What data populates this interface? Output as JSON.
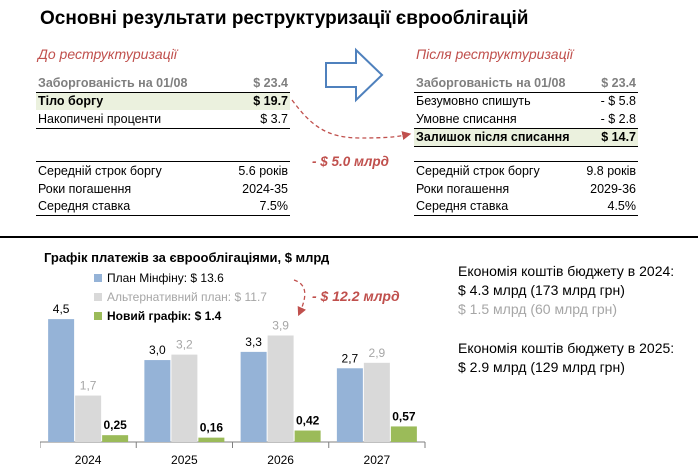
{
  "title": "Основні результати реструктуризації єврооблігацій",
  "before": {
    "heading": "До реструктуризації",
    "rows": [
      {
        "label": "Заборгованість на 01/08",
        "value": "$ 23.4"
      },
      {
        "label": "Тіло боргу",
        "value": "$ 19.7"
      },
      {
        "label": "Накопичені проценти",
        "value": "$ 3.7"
      }
    ],
    "stats": [
      {
        "label": "Середній строк боргу",
        "value": "5.6 років"
      },
      {
        "label": "Роки погашення",
        "value": "2024-35"
      },
      {
        "label": "Середня ставка",
        "value": "7.5%"
      }
    ]
  },
  "after": {
    "heading": "Після реструктуризації",
    "rows": [
      {
        "label": "Заборгованість на 01/08",
        "value": "$ 23.4"
      },
      {
        "label": "Безумовно спишуть",
        "value": "- $ 5.8"
      },
      {
        "label": "Умовне списання",
        "value": "- $ 2.8"
      },
      {
        "label": "Залишок після списання",
        "value": "$ 14.7"
      }
    ],
    "stats": [
      {
        "label": "Середній строк боргу",
        "value": "9.8 років"
      },
      {
        "label": "Роки погашення",
        "value": "2029-36"
      },
      {
        "label": "Середня ставка",
        "value": "4.5%"
      }
    ]
  },
  "cut_label": "- $ 5.0 млрд",
  "chart_cut_label": "- $ 12.2 млрд",
  "economy": {
    "y2024_title": "Економія коштів бюджету в 2024:",
    "y2024_main": "$ 4.3 млрд (173 млрд грн)",
    "y2024_alt": "$ 1.5 млрд (60 млрд грн)",
    "y2025_title": "Економія коштів бюджету в 2025:",
    "y2025_main": "$ 2.9 млрд (129 млрд грн)"
  },
  "colors": {
    "accent_red": "#c0504d",
    "plan_blue": "#95b3d7",
    "alt_grey": "#d9d9d9",
    "new_green": "#9bbb59",
    "highlight": "#ebf1de"
  },
  "chart_data": {
    "type": "bar",
    "title": "Графік платежів за єврооблігаціями, $ млрд",
    "categories": [
      "2024",
      "2025",
      "2026",
      "2027"
    ],
    "series": [
      {
        "name": "План Мінфіну: $ 13.6",
        "values": [
          4.5,
          3.0,
          3.3,
          2.7
        ],
        "labels": [
          "4,5",
          "3,0",
          "3,3",
          "2,7"
        ],
        "color": "#95b3d7",
        "label_color": "#000000",
        "legend_bold": false,
        "legend_color": "#000000"
      },
      {
        "name": "Альтернативний план: $ 11.7",
        "values": [
          1.7,
          3.2,
          3.9,
          2.9
        ],
        "labels": [
          "1,7",
          "3,2",
          "3,9",
          "2,9"
        ],
        "color": "#d9d9d9",
        "label_color": "#a6a6a6",
        "legend_bold": false,
        "legend_color": "#a6a6a6"
      },
      {
        "name": "Новий графік: $ 1.4",
        "values": [
          0.25,
          0.16,
          0.42,
          0.57
        ],
        "labels": [
          "0,25",
          "0,16",
          "0,42",
          "0,57"
        ],
        "color": "#9bbb59",
        "label_color": "#000000",
        "legend_bold": true,
        "legend_color": "#000000"
      }
    ],
    "ylim": [
      0,
      5.2
    ],
    "grid": false,
    "legend_position": "top-left"
  }
}
